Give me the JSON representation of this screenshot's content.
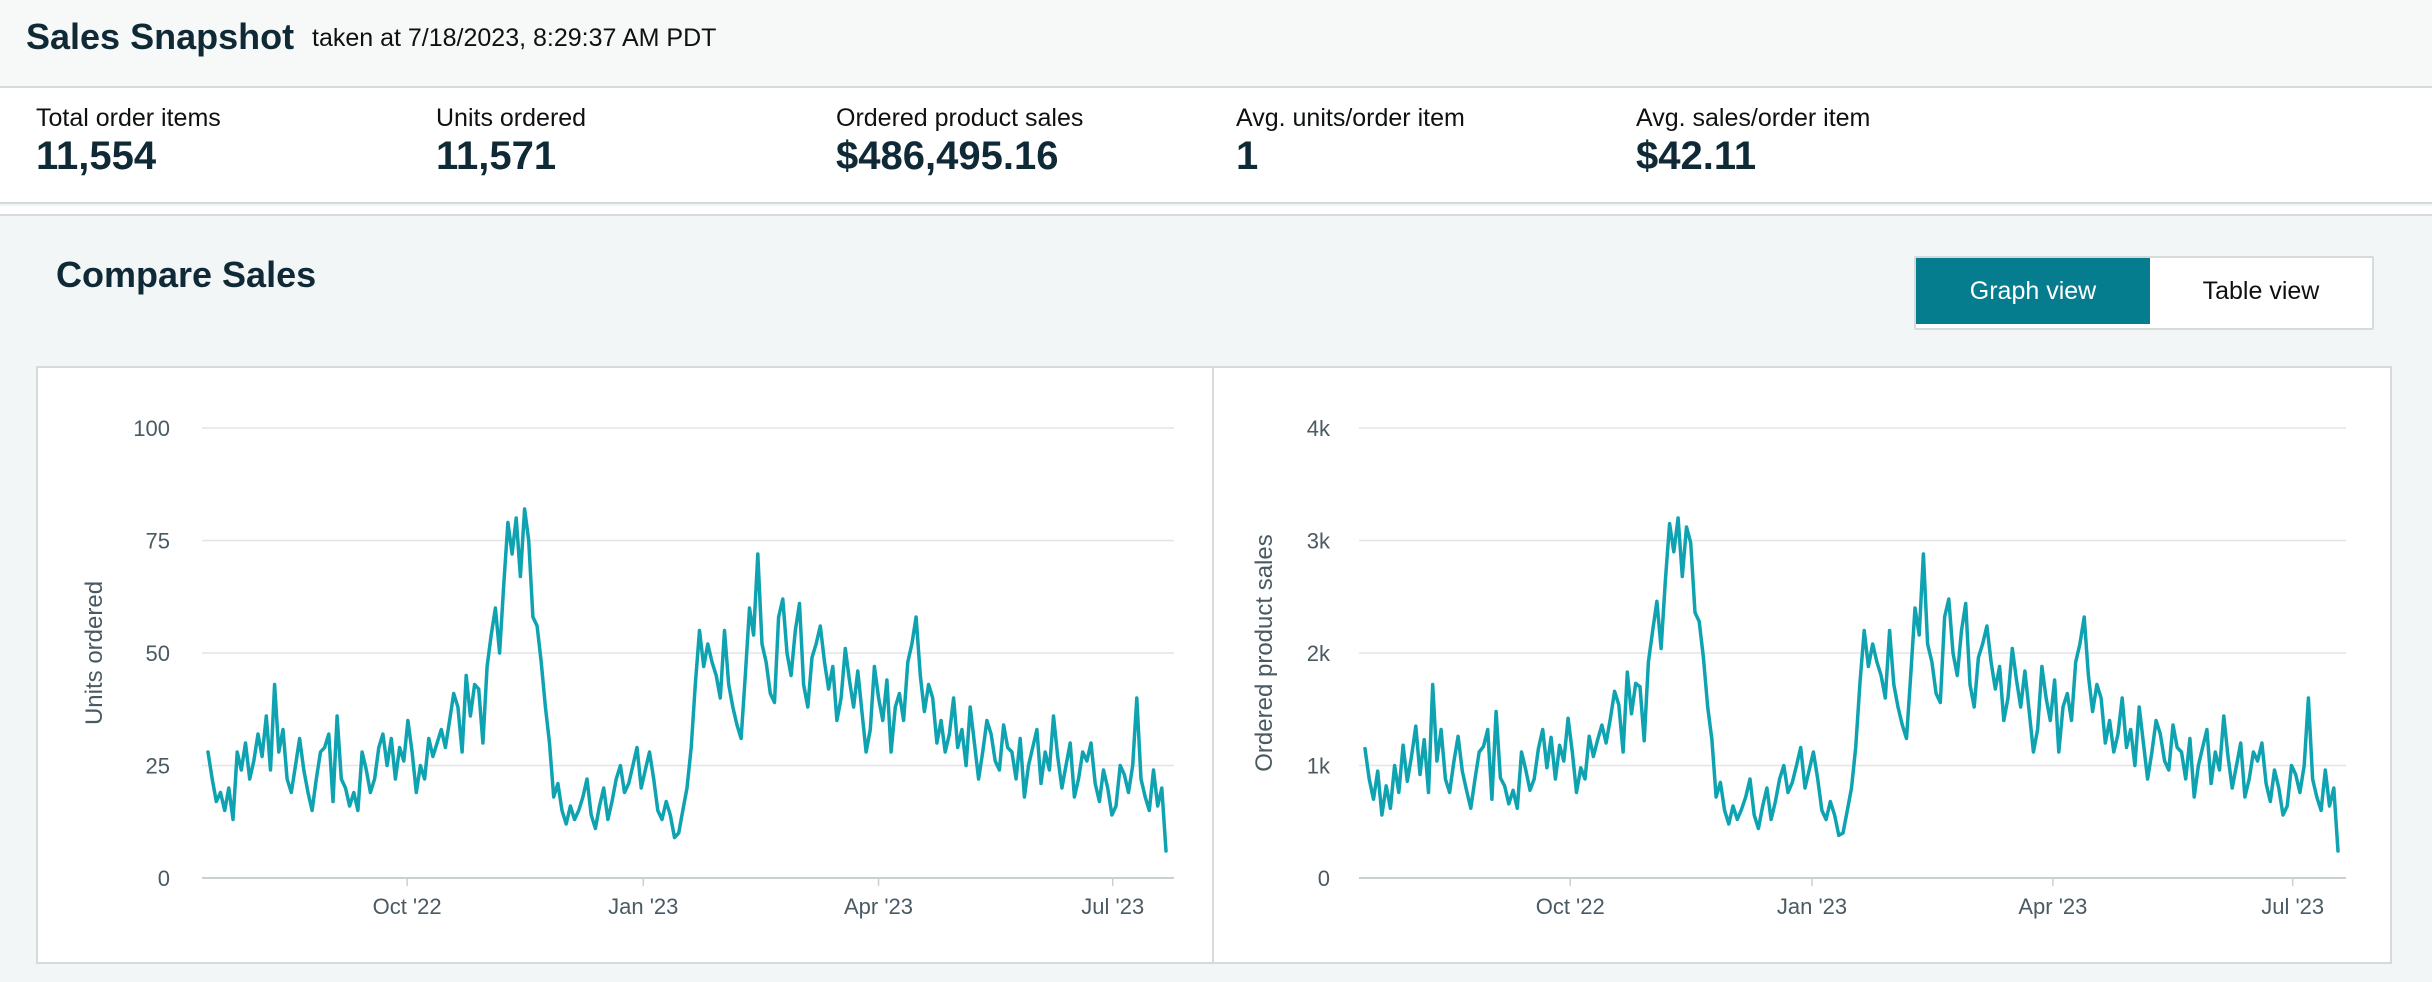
{
  "header": {
    "title": "Sales Snapshot",
    "taken": "taken at 7/18/2023, 8:29:37 AM PDT"
  },
  "metrics": [
    {
      "label": "Total order items",
      "value": "11,554"
    },
    {
      "label": "Units ordered",
      "value": "11,571"
    },
    {
      "label": "Ordered product sales",
      "value": "$486,495.16"
    },
    {
      "label": "Avg. units/order item",
      "value": "1"
    },
    {
      "label": "Avg. sales/order item",
      "value": "$42.11"
    }
  ],
  "compare": {
    "title": "Compare Sales",
    "graph_view": "Graph view",
    "table_view": "Table view"
  },
  "colors": {
    "line": "#0fa3b1",
    "accent": "#067d8f",
    "grid": "#e3e6e6",
    "axis_text": "#4a5a63"
  },
  "chart_data": [
    {
      "type": "line",
      "ylabel": "Units ordered",
      "ylim": [
        0,
        100
      ],
      "yticks": [
        0,
        25,
        50,
        75,
        100
      ],
      "ytick_labels": [
        "0",
        "25",
        "50",
        "75",
        "100"
      ],
      "xticks": [
        "Oct '22",
        "Jan '23",
        "Apr '23",
        "Jul '23"
      ],
      "series": [
        {
          "values": [
            28,
            22,
            17,
            19,
            15,
            20,
            13,
            28,
            24,
            30,
            22,
            26,
            32,
            27,
            36,
            24,
            43,
            28,
            33,
            22,
            19,
            25,
            31,
            24,
            19,
            15,
            22,
            28,
            29,
            32,
            17,
            36,
            22,
            20,
            16,
            19,
            15,
            28,
            24,
            19,
            22,
            29,
            32,
            25,
            31,
            22,
            29,
            26,
            35,
            28,
            19,
            25,
            22,
            31,
            27,
            30,
            33,
            29,
            35,
            41,
            38,
            28,
            45,
            36,
            43,
            42,
            30,
            47,
            54,
            60,
            50,
            65,
            79,
            72,
            80,
            67,
            82,
            75,
            58,
            56,
            48,
            38,
            30,
            18,
            21,
            15,
            12,
            16,
            13,
            15,
            18,
            22,
            14,
            11,
            16,
            20,
            13,
            17,
            22,
            25,
            19,
            21,
            25,
            29,
            20,
            24,
            28,
            22,
            15,
            13,
            17,
            14,
            9,
            10,
            15,
            20,
            29,
            43,
            55,
            47,
            52,
            48,
            45,
            40,
            55,
            43,
            38,
            34,
            31,
            45,
            60,
            54,
            72,
            52,
            48,
            41,
            39,
            58,
            62,
            50,
            45,
            55,
            61,
            43,
            38,
            49,
            52,
            56,
            48,
            42,
            47,
            35,
            40,
            51,
            44,
            38,
            46,
            37,
            28,
            33,
            47,
            40,
            35,
            44,
            28,
            38,
            41,
            35,
            48,
            52,
            58,
            45,
            37,
            43,
            40,
            30,
            35,
            28,
            32,
            40,
            29,
            33,
            25,
            38,
            30,
            22,
            28,
            35,
            32,
            26,
            24,
            34,
            29,
            28,
            22,
            31,
            18,
            25,
            29,
            33,
            21,
            28,
            24,
            36,
            27,
            20,
            25,
            30,
            18,
            22,
            28,
            26,
            30,
            21,
            17,
            24,
            20,
            14,
            16,
            25,
            23,
            19,
            25,
            40,
            22,
            18,
            15,
            24,
            16,
            20,
            6
          ]
        }
      ]
    },
    {
      "type": "line",
      "ylabel": "Ordered product sales",
      "ylim": [
        0,
        4000
      ],
      "yticks": [
        0,
        1000,
        2000,
        3000,
        4000
      ],
      "ytick_labels": [
        "0",
        "1k",
        "2k",
        "3k",
        "4k"
      ],
      "xticks": [
        "Oct '22",
        "Jan '23",
        "Apr '23",
        "Jul '23"
      ],
      "series": [
        {
          "values": [
            1150,
            880,
            700,
            950,
            560,
            820,
            620,
            1000,
            760,
            1180,
            860,
            1080,
            1350,
            920,
            1230,
            760,
            1720,
            1040,
            1320,
            880,
            760,
            1030,
            1260,
            950,
            780,
            620,
            880,
            1120,
            1170,
            1320,
            700,
            1480,
            890,
            820,
            660,
            780,
            620,
            1120,
            960,
            780,
            880,
            1150,
            1320,
            980,
            1250,
            880,
            1180,
            1040,
            1420,
            1120,
            760,
            980,
            880,
            1260,
            1080,
            1230,
            1360,
            1200,
            1420,
            1660,
            1540,
            1120,
            1830,
            1460,
            1730,
            1700,
            1220,
            1920,
            2200,
            2460,
            2040,
            2650,
            3150,
            2900,
            3200,
            2680,
            3120,
            2980,
            2360,
            2280,
            1960,
            1520,
            1230,
            720,
            850,
            600,
            480,
            640,
            520,
            610,
            720,
            880,
            560,
            440,
            640,
            800,
            520,
            680,
            880,
            1000,
            760,
            850,
            1000,
            1160,
            800,
            960,
            1120,
            880,
            600,
            520,
            680,
            560,
            380,
            400,
            600,
            800,
            1160,
            1740,
            2200,
            1880,
            2080,
            1920,
            1800,
            1600,
            2200,
            1720,
            1520,
            1360,
            1240,
            1800,
            2400,
            2160,
            2880,
            2080,
            1920,
            1640,
            1560,
            2320,
            2480,
            2000,
            1800,
            2200,
            2440,
            1720,
            1520,
            1960,
            2080,
            2240,
            1920,
            1680,
            1880,
            1400,
            1600,
            2040,
            1760,
            1520,
            1840,
            1480,
            1120,
            1320,
            1880,
            1600,
            1400,
            1760,
            1120,
            1520,
            1640,
            1400,
            1920,
            2080,
            2320,
            1800,
            1480,
            1720,
            1600,
            1200,
            1400,
            1120,
            1280,
            1600,
            1160,
            1320,
            1000,
            1520,
            1200,
            880,
            1120,
            1400,
            1280,
            1040,
            960,
            1360,
            1160,
            1120,
            880,
            1240,
            720,
            1000,
            1160,
            1320,
            840,
            1120,
            960,
            1440,
            1080,
            800,
            1000,
            1200,
            720,
            880,
            1120,
            1040,
            1200,
            840,
            680,
            960,
            800,
            560,
            640,
            1000,
            920,
            760,
            1000,
            1600,
            880,
            720,
            600,
            960,
            640,
            800,
            240
          ]
        }
      ]
    }
  ]
}
